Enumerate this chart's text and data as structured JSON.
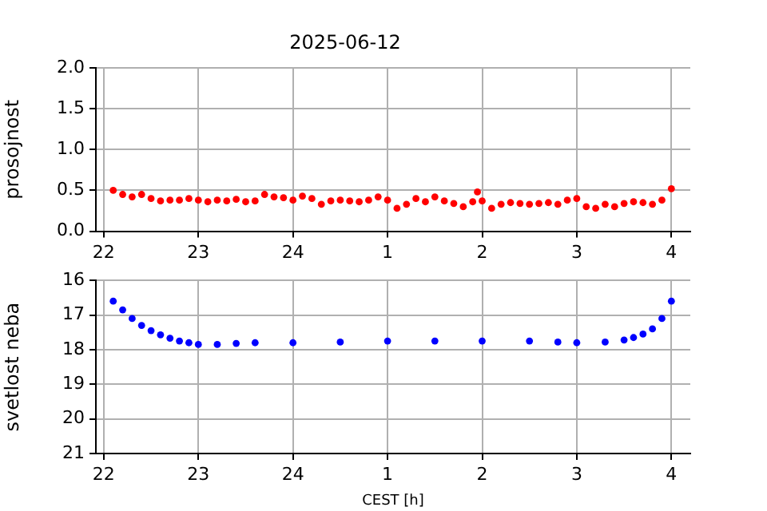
{
  "chart_data": [
    {
      "type": "scatter",
      "title": "2025-06-12",
      "ylabel": "prosojnost",
      "marker": "circle",
      "grid": true,
      "legend": false,
      "xlim": [
        "2025-06-12T21:55",
        "2025-06-13T04:12"
      ],
      "xticks": [
        {
          "value": "2025-06-12T22:00",
          "label": "22"
        },
        {
          "value": "2025-06-12T23:00",
          "label": "23"
        },
        {
          "value": "2025-06-13T00:00",
          "label": "24"
        },
        {
          "value": "2025-06-13T01:00",
          "label": "1"
        },
        {
          "value": "2025-06-13T02:00",
          "label": "2"
        },
        {
          "value": "2025-06-13T03:00",
          "label": "3"
        },
        {
          "value": "2025-06-13T04:00",
          "label": "4"
        }
      ],
      "ylim": [
        0,
        2
      ],
      "yticks": [
        {
          "value": 0,
          "label": "0.0"
        },
        {
          "value": 0.5,
          "label": "0.5"
        },
        {
          "value": 1,
          "label": "1.0"
        },
        {
          "value": 1.5,
          "label": "1.5"
        },
        {
          "value": 2,
          "label": "2.0"
        }
      ],
      "x": [
        "2025-06-12T22:06",
        "2025-06-12T22:12",
        "2025-06-12T22:18",
        "2025-06-12T22:24",
        "2025-06-12T22:30",
        "2025-06-12T22:36",
        "2025-06-12T22:42",
        "2025-06-12T22:48",
        "2025-06-12T22:54",
        "2025-06-12T23:00",
        "2025-06-12T23:06",
        "2025-06-12T23:12",
        "2025-06-12T23:18",
        "2025-06-12T23:24",
        "2025-06-12T23:30",
        "2025-06-12T23:36",
        "2025-06-12T23:42",
        "2025-06-12T23:48",
        "2025-06-12T23:54",
        "2025-06-13T00:00",
        "2025-06-13T00:06",
        "2025-06-13T00:12",
        "2025-06-13T00:18",
        "2025-06-13T00:24",
        "2025-06-13T00:30",
        "2025-06-13T00:36",
        "2025-06-13T00:42",
        "2025-06-13T00:48",
        "2025-06-13T00:54",
        "2025-06-13T01:00",
        "2025-06-13T01:06",
        "2025-06-13T01:12",
        "2025-06-13T01:18",
        "2025-06-13T01:24",
        "2025-06-13T01:30",
        "2025-06-13T01:36",
        "2025-06-13T01:42",
        "2025-06-13T01:48",
        "2025-06-13T01:54",
        "2025-06-13T01:57",
        "2025-06-13T02:00",
        "2025-06-13T02:06",
        "2025-06-13T02:12",
        "2025-06-13T02:18",
        "2025-06-13T02:24",
        "2025-06-13T02:30",
        "2025-06-13T02:36",
        "2025-06-13T02:42",
        "2025-06-13T02:48",
        "2025-06-13T02:54",
        "2025-06-13T03:00",
        "2025-06-13T03:06",
        "2025-06-13T03:12",
        "2025-06-13T03:18",
        "2025-06-13T03:24",
        "2025-06-13T03:30",
        "2025-06-13T03:36",
        "2025-06-13T03:42",
        "2025-06-13T03:48",
        "2025-06-13T03:54",
        "2025-06-13T04:00"
      ],
      "series": [
        {
          "color": "#ff0000",
          "values": [
            0.5,
            0.45,
            0.42,
            0.45,
            0.4,
            0.37,
            0.38,
            0.38,
            0.4,
            0.38,
            0.36,
            0.38,
            0.37,
            0.39,
            0.36,
            0.37,
            0.45,
            0.42,
            0.41,
            0.38,
            0.43,
            0.4,
            0.33,
            0.37,
            0.38,
            0.37,
            0.36,
            0.38,
            0.42,
            0.38,
            0.28,
            0.33,
            0.4,
            0.36,
            0.42,
            0.37,
            0.34,
            0.3,
            0.36,
            0.48,
            0.37,
            0.28,
            0.33,
            0.35,
            0.34,
            0.33,
            0.34,
            0.35,
            0.33,
            0.38,
            0.4,
            0.3,
            0.28,
            0.33,
            0.3,
            0.34,
            0.36,
            0.35,
            0.33,
            0.38,
            0.52
          ]
        }
      ]
    },
    {
      "type": "scatter",
      "ylabel": "svetlost neba",
      "xlabel": "CEST [h]",
      "marker": "circle",
      "grid": true,
      "legend": false,
      "xlim": [
        "2025-06-12T21:55",
        "2025-06-13T04:12"
      ],
      "xticks": [
        {
          "value": "2025-06-12T22:00",
          "label": "22"
        },
        {
          "value": "2025-06-12T23:00",
          "label": "23"
        },
        {
          "value": "2025-06-13T00:00",
          "label": "24"
        },
        {
          "value": "2025-06-13T01:00",
          "label": "1"
        },
        {
          "value": "2025-06-13T02:00",
          "label": "2"
        },
        {
          "value": "2025-06-13T03:00",
          "label": "3"
        },
        {
          "value": "2025-06-13T04:00",
          "label": "4"
        }
      ],
      "ylim": [
        21,
        16
      ],
      "yticks": [
        16,
        17,
        18,
        19,
        20,
        21
      ],
      "x": [
        "2025-06-12T22:06",
        "2025-06-12T22:12",
        "2025-06-12T22:18",
        "2025-06-12T22:24",
        "2025-06-12T22:30",
        "2025-06-12T22:36",
        "2025-06-12T22:42",
        "2025-06-12T22:48",
        "2025-06-12T22:54",
        "2025-06-12T23:00",
        "2025-06-12T23:12",
        "2025-06-12T23:24",
        "2025-06-12T23:36",
        "2025-06-13T00:00",
        "2025-06-13T00:30",
        "2025-06-13T01:00",
        "2025-06-13T01:30",
        "2025-06-13T02:00",
        "2025-06-13T02:30",
        "2025-06-13T02:48",
        "2025-06-13T03:00",
        "2025-06-13T03:18",
        "2025-06-13T03:30",
        "2025-06-13T03:36",
        "2025-06-13T03:42",
        "2025-06-13T03:48",
        "2025-06-13T03:54",
        "2025-06-13T04:00"
      ],
      "series": [
        {
          "color": "#0000ff",
          "values": [
            16.6,
            16.85,
            17.1,
            17.3,
            17.45,
            17.57,
            17.67,
            17.75,
            17.8,
            17.85,
            17.85,
            17.82,
            17.8,
            17.8,
            17.78,
            17.75,
            17.75,
            17.75,
            17.75,
            17.78,
            17.8,
            17.78,
            17.72,
            17.65,
            17.55,
            17.4,
            17.1,
            16.6
          ]
        }
      ]
    }
  ]
}
